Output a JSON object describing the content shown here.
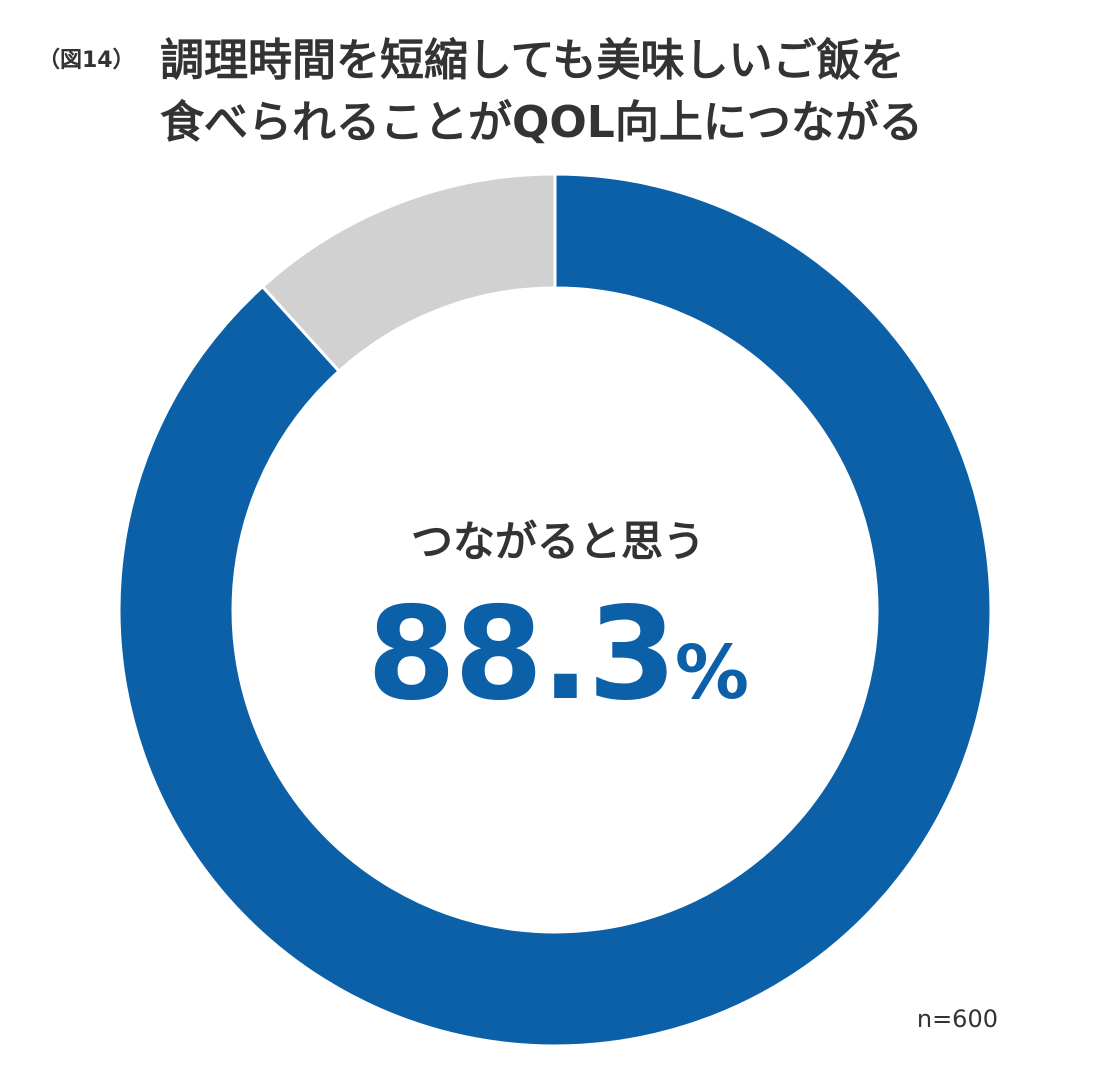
{
  "figure_label": "（図14）",
  "title_line1": "調理時間を短縮しても美味しいご飯を",
  "title_line2": "食べられることがQOL向上につながる",
  "sample_note": "n=600",
  "chart_data": {
    "type": "pie",
    "donut": true,
    "categories": [
      "つながると思う",
      ""
    ],
    "values": [
      88.3,
      11.7
    ],
    "colors": [
      "#0b60a8",
      "#d2d1d2"
    ],
    "center_label": "つながると思う",
    "center_value": "88.3",
    "center_unit": "%"
  }
}
